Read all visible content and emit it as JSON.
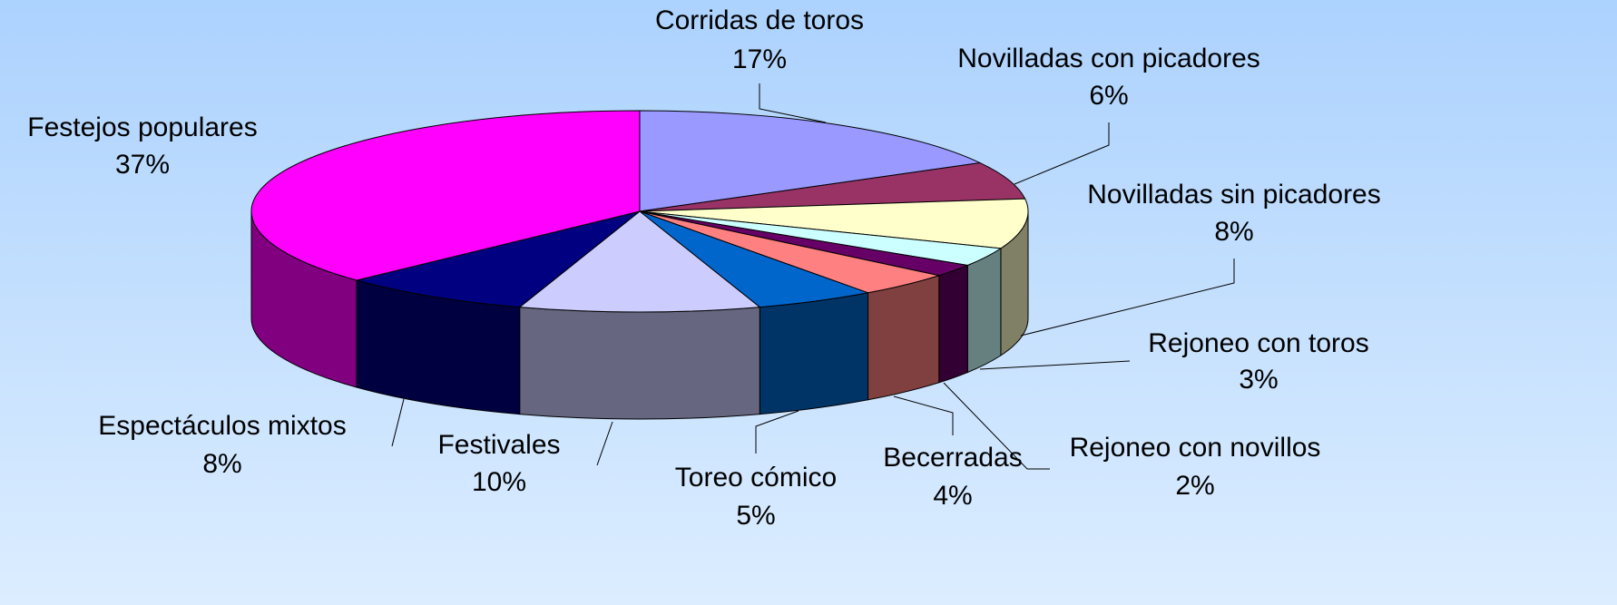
{
  "chart_data": {
    "type": "pie",
    "categories": [
      "Corridas de toros",
      "Novilladas con picadores",
      "Novilladas sin picadores",
      "Rejoneo con toros",
      "Rejoneo con novillos",
      "Becerradas",
      "Toreo cómico",
      "Festivales",
      "Espectáculos mixtos",
      "Festejos populares"
    ],
    "values": [
      17,
      6,
      8,
      3,
      2,
      4,
      5,
      10,
      8,
      37
    ],
    "value_labels": [
      "17%",
      "6%",
      "8%",
      "3%",
      "2%",
      "4%",
      "5%",
      "10%",
      "8%",
      "37%"
    ],
    "colors": [
      "#9999ff",
      "#993366",
      "#ffffcc",
      "#ccffff",
      "#660066",
      "#ff8080",
      "#0066cc",
      "#ccccff",
      "#000080",
      "#ff00ff"
    ]
  }
}
